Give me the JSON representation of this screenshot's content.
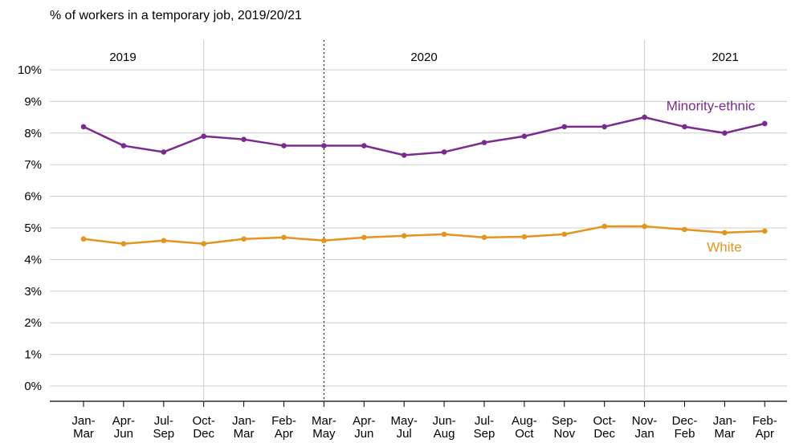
{
  "chart_data": {
    "type": "line",
    "title": "% of workers in a temporary job, 2019/20/21",
    "periods": [
      "2019",
      "2020",
      "2021"
    ],
    "categories": [
      [
        "Jan-",
        "Mar"
      ],
      [
        "Apr-",
        "Jun"
      ],
      [
        "Jul-",
        "Sep"
      ],
      [
        "Oct-",
        "Dec"
      ],
      [
        "Jan-",
        "Mar"
      ],
      [
        "Feb-",
        "Apr"
      ],
      [
        "Mar-",
        "May"
      ],
      [
        "Apr-",
        "Jun"
      ],
      [
        "May-",
        "Jul"
      ],
      [
        "Jun-",
        "Aug"
      ],
      [
        "Jul-",
        "Sep"
      ],
      [
        "Aug-",
        "Oct"
      ],
      [
        "Sep-",
        "Nov"
      ],
      [
        "Oct-",
        "Dec"
      ],
      [
        "Nov-",
        "Jan"
      ],
      [
        "Dec-",
        "Feb"
      ],
      [
        "Jan-",
        "Mar"
      ],
      [
        "Feb-",
        "Apr"
      ]
    ],
    "series": [
      {
        "name": "Minority-ethnic",
        "color": "#7b2a90",
        "values": [
          8.2,
          7.6,
          7.4,
          7.9,
          7.8,
          7.6,
          7.6,
          7.6,
          7.3,
          7.4,
          7.7,
          7.9,
          8.2,
          8.2,
          8.5,
          8.2,
          8.0,
          8.3
        ]
      },
      {
        "name": "White",
        "color": "#e3951d",
        "values": [
          4.65,
          4.5,
          4.6,
          4.5,
          4.65,
          4.7,
          4.6,
          4.7,
          4.75,
          4.8,
          4.7,
          4.72,
          4.8,
          5.05,
          5.05,
          4.95,
          4.85,
          4.9
        ]
      }
    ],
    "ylim": [
      0,
      10
    ],
    "yticks": [
      {
        "value": 0,
        "label": "0%"
      },
      {
        "value": 1,
        "label": "1%"
      },
      {
        "value": 2,
        "label": "2%"
      },
      {
        "value": 3,
        "label": "3%"
      },
      {
        "value": 4,
        "label": "4%"
      },
      {
        "value": 5,
        "label": "5%"
      },
      {
        "value": 6,
        "label": "6%"
      },
      {
        "value": 7,
        "label": "7%"
      },
      {
        "value": 8,
        "label": "8%"
      },
      {
        "value": 9,
        "label": "9%"
      },
      {
        "value": 10,
        "label": "10%"
      }
    ],
    "grid": true
  }
}
